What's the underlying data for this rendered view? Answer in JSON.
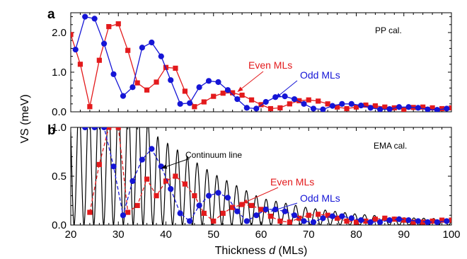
{
  "colors": {
    "even": "#e31a1c",
    "odd": "#1515d6",
    "continuum": "#000000"
  },
  "chart_data": [
    {
      "panel_label": "a",
      "type": "line",
      "note": "PP cal.",
      "xlim": [
        20,
        100
      ],
      "ylim": [
        0,
        2.5
      ],
      "yticks": [
        "0.0",
        "1.0",
        "2.0"
      ],
      "ytick_values": [
        0,
        1,
        2
      ],
      "series": [
        {
          "name": "Even MLs",
          "marker": "square",
          "x": [
            20,
            22,
            24,
            26,
            28,
            30,
            32,
            34,
            36,
            38,
            40,
            42,
            44,
            46,
            48,
            50,
            52,
            54,
            56,
            58,
            60,
            62,
            64,
            66,
            68,
            70,
            72,
            74,
            76,
            78,
            80,
            82,
            84,
            86,
            88,
            90,
            92,
            94,
            96,
            98,
            100
          ],
          "y": [
            1.95,
            1.2,
            0.13,
            1.3,
            2.15,
            2.22,
            1.55,
            0.73,
            0.55,
            0.75,
            1.12,
            1.1,
            0.52,
            0.13,
            0.25,
            0.39,
            0.47,
            0.48,
            0.42,
            0.3,
            0.18,
            0.08,
            0.1,
            0.2,
            0.28,
            0.3,
            0.27,
            0.2,
            0.12,
            0.08,
            0.12,
            0.17,
            0.15,
            0.12,
            0.1,
            0.06,
            0.11,
            0.12,
            0.1,
            0.08,
            0.1
          ]
        },
        {
          "name": "Odd MLs",
          "marker": "circle",
          "x": [
            21,
            23,
            25,
            27,
            29,
            31,
            33,
            35,
            37,
            39,
            41,
            43,
            45,
            47,
            49,
            51,
            53,
            55,
            57,
            59,
            61,
            63,
            65,
            67,
            69,
            71,
            73,
            75,
            77,
            79,
            81,
            83,
            85,
            87,
            89,
            91,
            93,
            95,
            97,
            99
          ],
          "y": [
            1.57,
            2.4,
            2.35,
            1.72,
            0.95,
            0.4,
            0.62,
            1.62,
            1.75,
            1.4,
            0.8,
            0.2,
            0.22,
            0.62,
            0.78,
            0.75,
            0.55,
            0.32,
            0.1,
            0.08,
            0.25,
            0.37,
            0.39,
            0.32,
            0.2,
            0.08,
            0.06,
            0.15,
            0.2,
            0.2,
            0.16,
            0.1,
            0.06,
            0.07,
            0.12,
            0.12,
            0.1,
            0.06,
            0.05,
            0.08
          ]
        }
      ],
      "annotations": [
        {
          "text": "Even MLs",
          "color": "even",
          "target": [
            55,
            0.5
          ]
        },
        {
          "text": "Odd MLs",
          "color": "odd",
          "target": [
            63,
            0.34
          ]
        }
      ]
    },
    {
      "panel_label": "b",
      "type": "line",
      "note": "EMA cal.",
      "xlim": [
        20,
        100
      ],
      "ylim": [
        0,
        1.0
      ],
      "yticks": [
        "0.0",
        "0.5",
        "1.0"
      ],
      "ytick_values": [
        0,
        0.5,
        1.0
      ],
      "continuum": {
        "name": "Continuum line",
        "envelope": [
          [
            20,
            1.0
          ],
          [
            34,
            1.0
          ],
          [
            38,
            0.73
          ],
          [
            50,
            0.42
          ],
          [
            60,
            0.22
          ],
          [
            70,
            0.14
          ],
          [
            80,
            0.09
          ],
          [
            90,
            0.06
          ],
          [
            100,
            0.05
          ]
        ]
      },
      "series": [
        {
          "name": "Even MLs",
          "marker": "square",
          "x": [
            24,
            26,
            28,
            30,
            32,
            34,
            36,
            38,
            40,
            42,
            44,
            46,
            48,
            50,
            52,
            54,
            56,
            58,
            60,
            62,
            64,
            66,
            68,
            70,
            72,
            74,
            76,
            78,
            80,
            82,
            84,
            86,
            88,
            90,
            92,
            94,
            96,
            98,
            100
          ],
          "y": [
            0.13,
            0.62,
            1.0,
            1.0,
            0.13,
            0.2,
            0.47,
            0.3,
            0.45,
            0.5,
            0.42,
            0.3,
            0.12,
            0.04,
            0.12,
            0.18,
            0.21,
            0.2,
            0.16,
            0.09,
            0.04,
            0.03,
            0.07,
            0.1,
            0.11,
            0.1,
            0.07,
            0.04,
            0.03,
            0.04,
            0.06,
            0.07,
            0.06,
            0.05,
            0.03,
            0.03,
            0.04,
            0.05,
            0.05
          ]
        },
        {
          "name": "Odd MLs",
          "marker": "circle",
          "x": [
            23,
            25,
            27,
            29,
            31,
            33,
            35,
            37,
            39,
            41,
            43,
            45,
            47,
            49,
            51,
            53,
            55,
            57,
            59,
            61,
            63,
            65,
            67,
            69,
            71,
            73,
            75,
            77,
            79,
            81,
            83,
            85,
            87,
            89,
            91,
            93,
            95,
            97,
            99
          ],
          "y": [
            1.0,
            1.0,
            1.0,
            0.6,
            0.1,
            0.45,
            0.67,
            0.78,
            0.6,
            0.37,
            0.12,
            0.04,
            0.2,
            0.3,
            0.33,
            0.28,
            0.14,
            0.04,
            0.1,
            0.16,
            0.16,
            0.14,
            0.1,
            0.04,
            0.03,
            0.07,
            0.09,
            0.09,
            0.07,
            0.05,
            0.03,
            0.03,
            0.05,
            0.06,
            0.05,
            0.04,
            0.03,
            0.03,
            0.04
          ]
        }
      ],
      "annotations": [
        {
          "text": "Continuum line",
          "color": "continuum",
          "target": [
            39,
            0.58
          ]
        },
        {
          "text": "Even MLs",
          "color": "even",
          "target": [
            56,
            0.22
          ]
        },
        {
          "text": "Odd MLs",
          "color": "odd",
          "target": [
            62,
            0.14
          ]
        }
      ]
    }
  ],
  "shared": {
    "ylabel": "VS (meV)",
    "xlabel_prefix": "Thickness ",
    "xlabel_var": "d",
    "xlabel_suffix": " (MLs)",
    "xticks": [
      "20",
      "30",
      "40",
      "50",
      "60",
      "70",
      "80",
      "90",
      "100"
    ],
    "xtick_values": [
      20,
      30,
      40,
      50,
      60,
      70,
      80,
      90,
      100
    ]
  }
}
